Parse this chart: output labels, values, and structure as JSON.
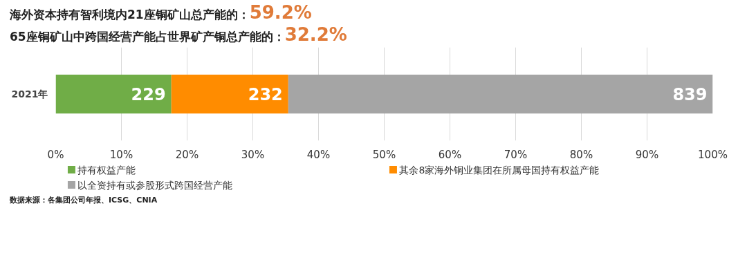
{
  "chart_data": {
    "type": "bar",
    "orientation": "horizontal",
    "stacked": true,
    "title": "海外资本持有智利境内21座铜矿山总产能的：",
    "subtitle": "65座铜矿山中跨国经营产能占世界矿产铜总产能的：",
    "annotations": [
      "59.2%",
      "32.2%",
      "数据来源：各集团公司年报、ICSG、CNIA"
    ],
    "categories": [
      "2021年"
    ],
    "series": [
      {
        "name": "持有权益产能",
        "color": "#70ad47",
        "values": [
          17.6
        ]
      },
      {
        "name": "其余8家海外铜业集团在所属母国持有权益产能",
        "color": "#ff8c00",
        "values": [
          17.8
        ]
      },
      {
        "name": "以全资持有或参股形式跨国经营产能",
        "color": "#a5a5a5",
        "values": [
          64.6
        ]
      }
    ],
    "value_labels": [
      [
        "229"
      ],
      [
        "232"
      ],
      [
        "839"
      ]
    ],
    "xlim": [
      0,
      100
    ],
    "xticks": [
      {
        "value": 0,
        "label": "0%"
      },
      {
        "value": 10,
        "label": "10%"
      },
      {
        "value": 20,
        "label": "20%"
      },
      {
        "value": 30,
        "label": "30%"
      },
      {
        "value": 40,
        "label": "40%"
      },
      {
        "value": 50,
        "label": "50%"
      },
      {
        "value": 60,
        "label": "60%"
      },
      {
        "value": 70,
        "label": "70%"
      },
      {
        "value": 80,
        "label": "80%"
      },
      {
        "value": 90,
        "label": "90%"
      },
      {
        "value": 100,
        "label": "100%"
      }
    ],
    "grid": "x",
    "legend": "bottom"
  }
}
